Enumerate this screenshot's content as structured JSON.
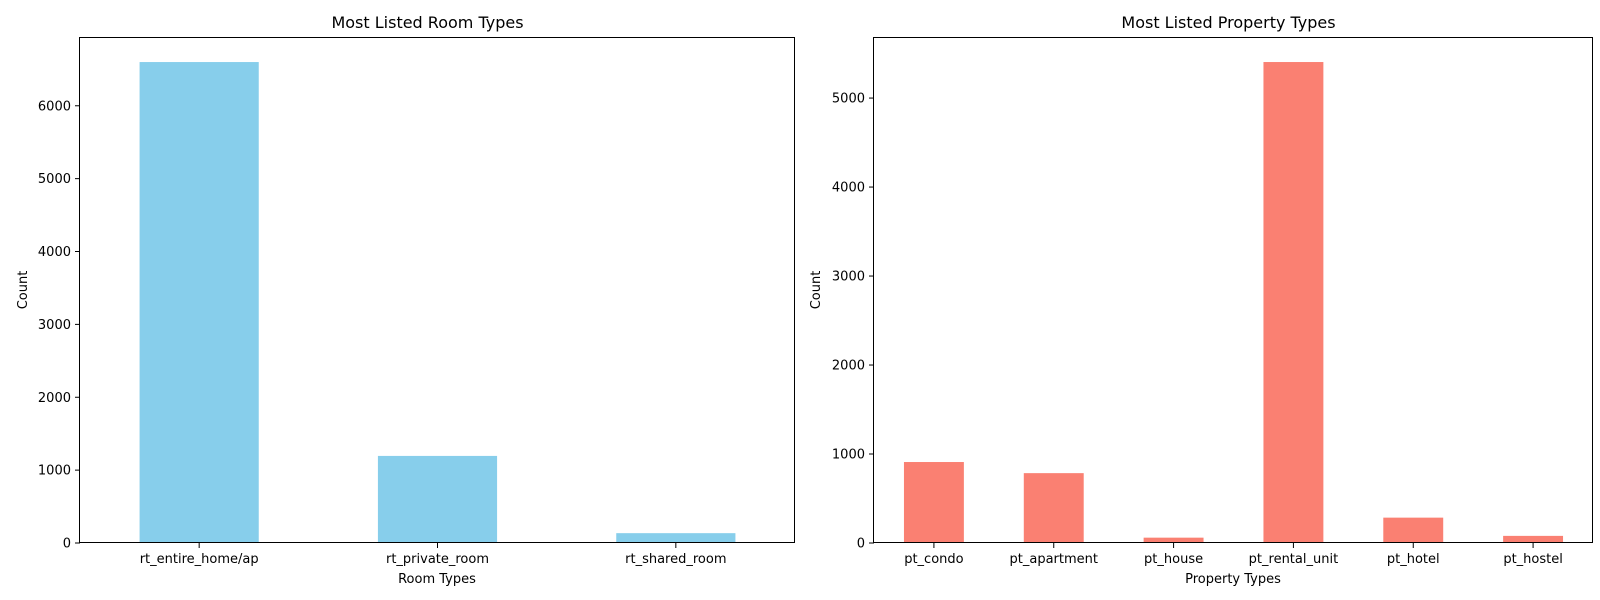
{
  "chart_data": [
    {
      "type": "bar",
      "title": "Most Listed Room Types",
      "xlabel": "Room Types",
      "ylabel": "Count",
      "categories": [
        "rt_entire_home/ap",
        "rt_private_room",
        "rt_shared_room"
      ],
      "values": [
        6600,
        1195,
        135
      ],
      "ylim": [
        0,
        6930
      ],
      "yticks": [
        0,
        1000,
        2000,
        3000,
        4000,
        5000,
        6000
      ],
      "color": "#87CEEB",
      "grid": false
    },
    {
      "type": "bar",
      "title": "Most Listed Property Types",
      "xlabel": "Property Types",
      "ylabel": "Count",
      "categories": [
        "pt_condo",
        "pt_apartment",
        "pt_house",
        "pt_rental_unit",
        "pt_hotel",
        "pt_hostel"
      ],
      "values": [
        910,
        785,
        60,
        5405,
        285,
        80
      ],
      "ylim": [
        0,
        5675
      ],
      "yticks": [
        0,
        1000,
        2000,
        3000,
        4000,
        5000
      ],
      "color": "#FA8072",
      "grid": false
    }
  ]
}
